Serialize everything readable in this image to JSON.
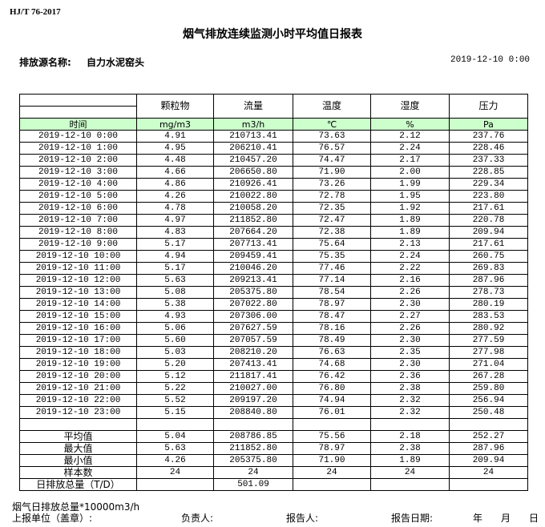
{
  "header": {
    "standard": "HJ/T 76-2017",
    "title": "烟气排放连续监测小时平均值日报表",
    "source_label": "排放源名称:",
    "source_name": "自力水泥窑头",
    "datetime": "2019-12-10 0:00"
  },
  "table": {
    "columns": [
      "颗粒物",
      "流量",
      "温度",
      "湿度",
      "压力"
    ],
    "units": [
      "时间",
      "mg/m3",
      "m3/h",
      "℃",
      "%",
      "Pa"
    ],
    "rows": [
      [
        "2019-12-10 0:00",
        "4.91",
        "210713.41",
        "73.63",
        "2.12",
        "237.76"
      ],
      [
        "2019-12-10 1:00",
        "4.95",
        "206210.41",
        "76.57",
        "2.24",
        "228.46"
      ],
      [
        "2019-12-10 2:00",
        "4.48",
        "210457.20",
        "74.47",
        "2.17",
        "237.33"
      ],
      [
        "2019-12-10 3:00",
        "4.66",
        "206650.80",
        "71.90",
        "2.00",
        "228.85"
      ],
      [
        "2019-12-10 4:00",
        "4.86",
        "210926.41",
        "73.26",
        "1.99",
        "229.34"
      ],
      [
        "2019-12-10 5:00",
        "4.26",
        "210022.80",
        "72.78",
        "1.95",
        "223.80"
      ],
      [
        "2019-12-10 6:00",
        "4.78",
        "210058.20",
        "72.35",
        "1.92",
        "217.61"
      ],
      [
        "2019-12-10 7:00",
        "4.97",
        "211852.80",
        "72.47",
        "1.89",
        "220.78"
      ],
      [
        "2019-12-10 8:00",
        "4.83",
        "207664.20",
        "72.38",
        "1.89",
        "209.94"
      ],
      [
        "2019-12-10 9:00",
        "5.17",
        "207713.41",
        "75.64",
        "2.13",
        "217.61"
      ],
      [
        "2019-12-10 10:00",
        "4.94",
        "209459.41",
        "75.35",
        "2.24",
        "260.75"
      ],
      [
        "2019-12-10 11:00",
        "5.17",
        "210046.20",
        "77.46",
        "2.22",
        "269.83"
      ],
      [
        "2019-12-10 12:00",
        "5.63",
        "209213.41",
        "77.14",
        "2.16",
        "287.96"
      ],
      [
        "2019-12-10 13:00",
        "5.08",
        "205375.80",
        "78.54",
        "2.26",
        "278.73"
      ],
      [
        "2019-12-10 14:00",
        "5.38",
        "207022.80",
        "78.97",
        "2.30",
        "280.19"
      ],
      [
        "2019-12-10 15:00",
        "4.93",
        "207306.00",
        "78.47",
        "2.27",
        "283.53"
      ],
      [
        "2019-12-10 16:00",
        "5.06",
        "207627.59",
        "78.16",
        "2.26",
        "280.92"
      ],
      [
        "2019-12-10 17:00",
        "5.60",
        "207057.59",
        "78.49",
        "2.30",
        "277.59"
      ],
      [
        "2019-12-10 18:00",
        "5.03",
        "208210.20",
        "76.63",
        "2.35",
        "277.98"
      ],
      [
        "2019-12-10 19:00",
        "5.20",
        "207413.41",
        "74.68",
        "2.30",
        "271.04"
      ],
      [
        "2019-12-10 20:00",
        "5.12",
        "211817.41",
        "76.42",
        "2.36",
        "267.28"
      ],
      [
        "2019-12-10 21:00",
        "5.22",
        "210027.00",
        "76.80",
        "2.38",
        "259.80"
      ],
      [
        "2019-12-10 22:00",
        "5.52",
        "209197.20",
        "74.94",
        "2.32",
        "256.94"
      ],
      [
        "2019-12-10 23:00",
        "5.15",
        "208840.80",
        "76.01",
        "2.32",
        "250.48"
      ]
    ],
    "summary": [
      [
        "平均值",
        "5.04",
        "208786.85",
        "75.56",
        "2.18",
        "252.27"
      ],
      [
        "最大值",
        "5.63",
        "211852.80",
        "78.97",
        "2.38",
        "287.96"
      ],
      [
        "最小值",
        "4.26",
        "205375.80",
        "71.90",
        "1.89",
        "209.94"
      ],
      [
        "样本数",
        "24",
        "24",
        "24",
        "24",
        "24"
      ]
    ],
    "daily_total": [
      "日排放总量（T/D）",
      "501.09"
    ]
  },
  "footer": {
    "note": "烟气日排放总量*10000m3/h",
    "unit_label": "上报单位（盖章）:",
    "responsible_label": "负责人:",
    "reporter_label": "报告人:",
    "date_label": "报告日期:",
    "year": "年",
    "month": "月",
    "day": "日"
  }
}
